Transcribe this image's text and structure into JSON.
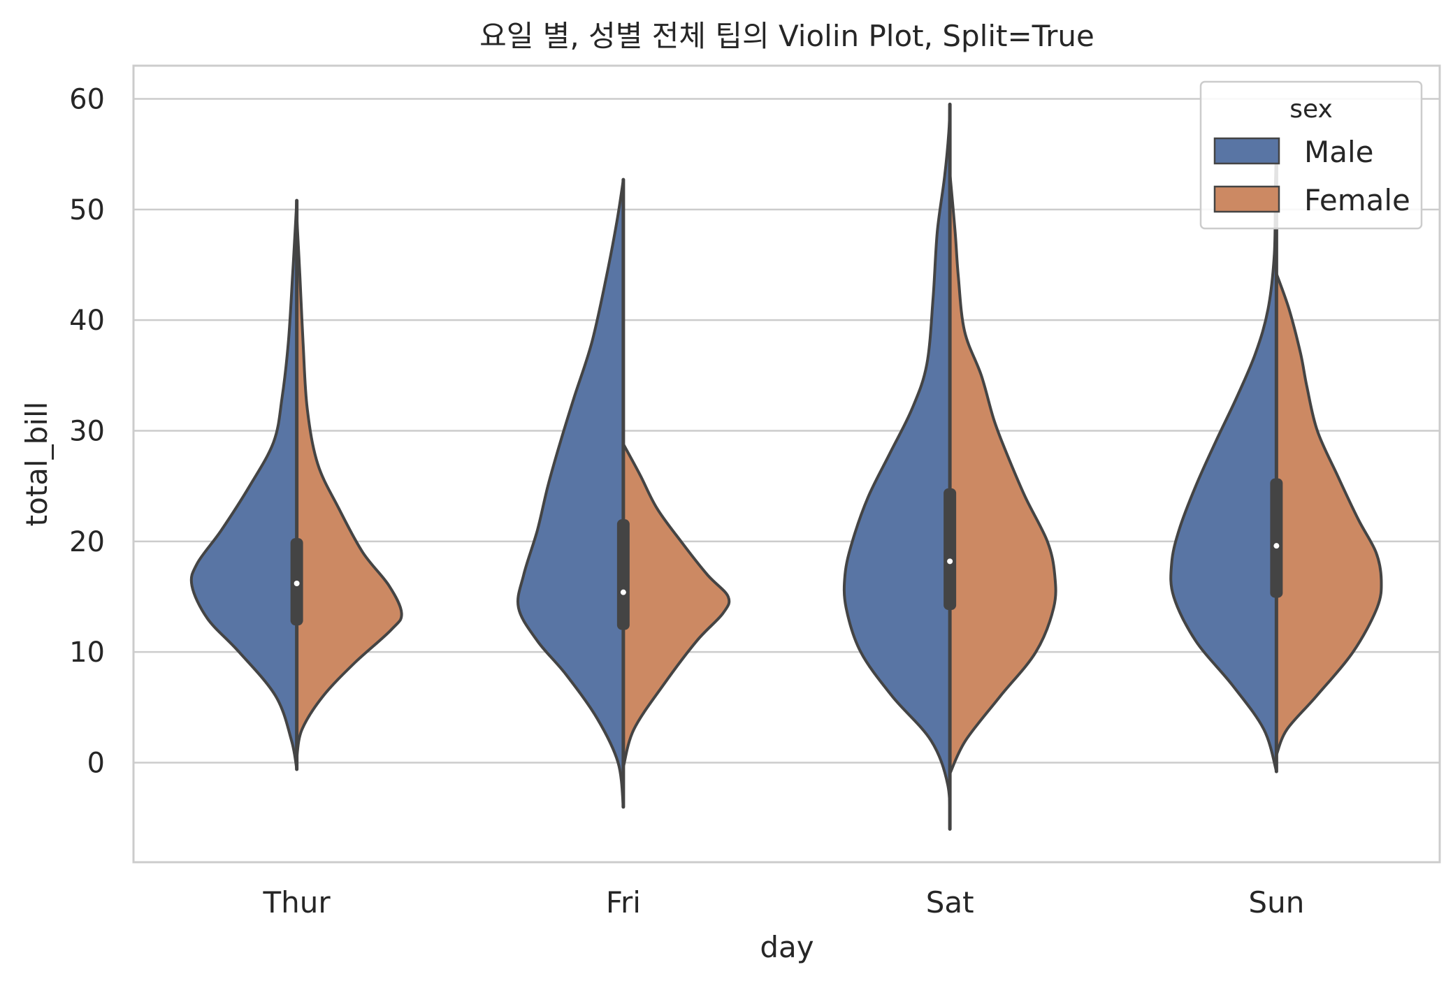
{
  "chart_data": {
    "type": "violin",
    "title": "요일 별, 성별 전체 팁의 Violin Plot, Split=True",
    "xlabel": "day",
    "ylabel": "total_bill",
    "categories": [
      "Thur",
      "Fri",
      "Sat",
      "Sun"
    ],
    "ylim": [
      -9,
      63
    ],
    "yticks": [
      0,
      10,
      20,
      30,
      40,
      50,
      60
    ],
    "grid": true,
    "split": true,
    "legend": {
      "title": "sex",
      "placement": "top-right"
    },
    "colors": {
      "Male": "#5975a4",
      "Female": "#cc8963",
      "outline": "#444444",
      "grid": "#cccccc"
    },
    "series": [
      {
        "name": "Male",
        "violins": [
          {
            "ymin": -0.6,
            "ymax": 50.8,
            "q1": 12.4,
            "median": 16.2,
            "q3": 20.3,
            "profile": [
              [
                -0.6,
                0
              ],
              [
                2,
                0.05
              ],
              [
                6,
                0.2
              ],
              [
                10,
                0.55
              ],
              [
                13,
                0.85
              ],
              [
                16,
                1
              ],
              [
                18,
                0.95
              ],
              [
                21,
                0.72
              ],
              [
                25,
                0.45
              ],
              [
                29,
                0.22
              ],
              [
                33,
                0.14
              ],
              [
                38,
                0.08
              ],
              [
                44,
                0.04
              ],
              [
                49,
                0.01
              ],
              [
                50.8,
                0
              ]
            ]
          },
          {
            "ymin": -4,
            "ymax": 52.7,
            "q1": 12.0,
            "median": 15.4,
            "q3": 22.0,
            "profile": [
              [
                -4,
                0
              ],
              [
                0,
                0.05
              ],
              [
                4,
                0.25
              ],
              [
                8,
                0.55
              ],
              [
                11,
                0.82
              ],
              [
                14,
                1
              ],
              [
                17,
                0.95
              ],
              [
                21,
                0.82
              ],
              [
                25,
                0.72
              ],
              [
                29,
                0.6
              ],
              [
                33,
                0.47
              ],
              [
                38,
                0.3
              ],
              [
                44,
                0.16
              ],
              [
                49,
                0.06
              ],
              [
                52.7,
                0
              ]
            ]
          },
          {
            "ymin": -6,
            "ymax": 59.5,
            "q1": 13.8,
            "median": 18.2,
            "q3": 24.8,
            "profile": [
              [
                -6,
                0
              ],
              [
                -2,
                0.02
              ],
              [
                2,
                0.18
              ],
              [
                6,
                0.55
              ],
              [
                10,
                0.85
              ],
              [
                14,
                0.99
              ],
              [
                17,
                1
              ],
              [
                20,
                0.93
              ],
              [
                24,
                0.78
              ],
              [
                28,
                0.57
              ],
              [
                32,
                0.36
              ],
              [
                36,
                0.22
              ],
              [
                42,
                0.16
              ],
              [
                48,
                0.12
              ],
              [
                53,
                0.05
              ],
              [
                57,
                0.01
              ],
              [
                59.5,
                0
              ]
            ]
          },
          {
            "ymin": -0.8,
            "ymax": 56.3,
            "q1": 14.9,
            "median": 19.6,
            "q3": 25.7,
            "profile": [
              [
                -0.8,
                0
              ],
              [
                3,
                0.12
              ],
              [
                7,
                0.42
              ],
              [
                11,
                0.77
              ],
              [
                15,
                0.98
              ],
              [
                18,
                1
              ],
              [
                21,
                0.93
              ],
              [
                25,
                0.77
              ],
              [
                29,
                0.58
              ],
              [
                33,
                0.38
              ],
              [
                37,
                0.2
              ],
              [
                41,
                0.08
              ],
              [
                46,
                0.02
              ],
              [
                52,
                0.01
              ],
              [
                56.3,
                0
              ]
            ]
          }
        ]
      },
      {
        "name": "Female",
        "violins": [
          {
            "ymin": 0.5,
            "ymax": 49.4,
            "q1": 12.4,
            "median": 16.2,
            "q3": 20.3,
            "profile": [
              [
                0.5,
                0
              ],
              [
                3,
                0.05
              ],
              [
                6,
                0.25
              ],
              [
                9,
                0.55
              ],
              [
                12,
                0.9
              ],
              [
                13.5,
                1
              ],
              [
                16,
                0.88
              ],
              [
                19,
                0.63
              ],
              [
                23,
                0.4
              ],
              [
                27,
                0.2
              ],
              [
                32,
                0.1
              ],
              [
                38,
                0.06
              ],
              [
                44,
                0.03
              ],
              [
                49.4,
                0
              ]
            ]
          },
          {
            "ymin": -0.4,
            "ymax": 28.8,
            "q1": 12.0,
            "median": 15.4,
            "q3": 22.0,
            "profile": [
              [
                -0.4,
                0
              ],
              [
                3,
                0.1
              ],
              [
                7,
                0.38
              ],
              [
                11,
                0.7
              ],
              [
                13.5,
                0.95
              ],
              [
                15,
                1
              ],
              [
                17,
                0.8
              ],
              [
                20,
                0.55
              ],
              [
                23,
                0.32
              ],
              [
                26,
                0.16
              ],
              [
                28.8,
                0
              ]
            ]
          },
          {
            "ymin": -1,
            "ymax": 53.3,
            "q1": 13.8,
            "median": 18.2,
            "q3": 24.8,
            "profile": [
              [
                -1,
                0
              ],
              [
                2,
                0.15
              ],
              [
                6,
                0.48
              ],
              [
                10,
                0.82
              ],
              [
                14,
                0.99
              ],
              [
                17,
                1
              ],
              [
                20,
                0.93
              ],
              [
                24,
                0.72
              ],
              [
                28,
                0.54
              ],
              [
                31,
                0.42
              ],
              [
                35,
                0.3
              ],
              [
                39,
                0.14
              ],
              [
                44,
                0.08
              ],
              [
                48,
                0.05
              ],
              [
                53.3,
                0
              ]
            ]
          },
          {
            "ymin": 0.7,
            "ymax": 44.2,
            "q1": 14.9,
            "median": 19.6,
            "q3": 25.7,
            "profile": [
              [
                0.7,
                0
              ],
              [
                3,
                0.1
              ],
              [
                6,
                0.38
              ],
              [
                10,
                0.73
              ],
              [
                14,
                0.96
              ],
              [
                16.5,
                1
              ],
              [
                19,
                0.95
              ],
              [
                22,
                0.78
              ],
              [
                26,
                0.58
              ],
              [
                30,
                0.39
              ],
              [
                34,
                0.29
              ],
              [
                37,
                0.23
              ],
              [
                41,
                0.12
              ],
              [
                44.2,
                0
              ]
            ]
          }
        ]
      }
    ]
  }
}
